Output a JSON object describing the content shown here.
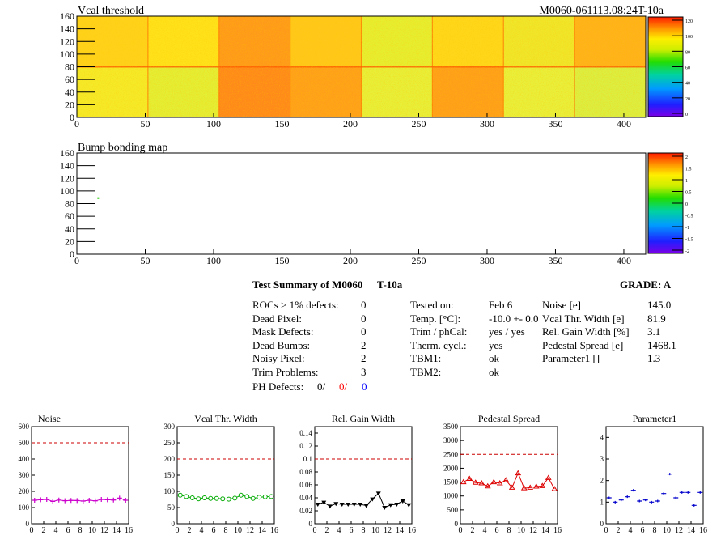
{
  "header": {
    "top_title": "Vcal threshold",
    "run_id": "M0060-061113.08:24T-10a",
    "bump_title": "Bump bonding map"
  },
  "maps": {
    "x_ticks": [
      "0",
      "50",
      "100",
      "150",
      "200",
      "250",
      "300",
      "350",
      "400"
    ],
    "y_ticks": [
      "0",
      "20",
      "40",
      "60",
      "80",
      "100",
      "120",
      "140",
      "160"
    ],
    "vcal_scale": [
      "120",
      "100",
      "80",
      "60",
      "40",
      "20",
      "0"
    ],
    "bump_scale": [
      "2",
      "1.5",
      "1",
      "0.5",
      "0",
      "-0.5",
      "-1",
      "-1.5",
      "-2"
    ],
    "bump_point": {
      "x": 15,
      "y": 90
    }
  },
  "summary": {
    "title": "Test Summary of M0060",
    "temp_code": "T-10a",
    "grade": "GRADE:  A",
    "rows_left": [
      {
        "label": "ROCs > 1% defects:",
        "value": "0"
      },
      {
        "label": "Dead Pixel:",
        "value": "0"
      },
      {
        "label": "Mask Defects:",
        "value": "0"
      },
      {
        "label": "Dead Bumps:",
        "value": "2"
      },
      {
        "label": "Noisy Pixel:",
        "value": "2"
      },
      {
        "label": "Trim Problems:",
        "value": "3"
      }
    ],
    "ph_label": "PH Defects:",
    "ph_values": [
      "0/",
      "0/",
      "0"
    ],
    "ph_colors": [
      "#000000",
      "#ff0000",
      "#0000ff"
    ],
    "rows_mid": [
      {
        "label": "Tested on:",
        "value": "Feb 6"
      },
      {
        "label": "Temp. [°C]:",
        "value": "-10.0 +- 0.0"
      },
      {
        "label": "Trim / phCal:",
        "value": "yes / yes"
      },
      {
        "label": "Therm. cycl.:",
        "value": "yes"
      },
      {
        "label": "TBM1:",
        "value": "ok"
      },
      {
        "label": "TBM2:",
        "value": "ok"
      }
    ],
    "rows_right": [
      {
        "label": "Noise [e]",
        "value": "145.0"
      },
      {
        "label": "Vcal Thr. Width [e]",
        "value": "81.9"
      },
      {
        "label": "Rel. Gain Width [%]",
        "value": "3.1"
      },
      {
        "label": "Pedestal Spread [e]",
        "value": "1468.1"
      },
      {
        "label": "Parameter1 []",
        "value": "1.3"
      }
    ]
  },
  "chart_data": [
    {
      "type": "line",
      "title": "Noise",
      "color": "#cc00cc",
      "marker": "plus",
      "ylim": [
        0,
        600
      ],
      "yticks": [
        "0",
        "100",
        "200",
        "300",
        "400",
        "500",
        "600"
      ],
      "threshold": 500,
      "x": [
        0,
        1,
        2,
        3,
        4,
        5,
        6,
        7,
        8,
        9,
        10,
        11,
        12,
        13,
        14,
        15
      ],
      "values": [
        145,
        148,
        150,
        138,
        146,
        142,
        144,
        143,
        140,
        145,
        141,
        150,
        148,
        146,
        158,
        145
      ]
    },
    {
      "type": "line",
      "title": "Vcal Thr. Width",
      "color": "#00aa00",
      "marker": "circle",
      "ylim": [
        0,
        300
      ],
      "yticks": [
        "0",
        "50",
        "100",
        "150",
        "200",
        "250",
        "300"
      ],
      "threshold": 200,
      "x": [
        0,
        1,
        2,
        3,
        4,
        5,
        6,
        7,
        8,
        9,
        10,
        11,
        12,
        13,
        14,
        15
      ],
      "values": [
        88,
        84,
        80,
        77,
        80,
        78,
        78,
        77,
        76,
        79,
        88,
        84,
        78,
        82,
        83,
        84
      ]
    },
    {
      "type": "line",
      "title": "Rel. Gain Width",
      "color": "#000000",
      "marker": "triangle-down",
      "ylim": [
        0,
        0.15
      ],
      "yticks": [
        "0",
        "0.02",
        "0.04",
        "0.06",
        "0.08",
        "0.1",
        "0.12",
        "0.14"
      ],
      "threshold": 0.1,
      "x": [
        0,
        1,
        2,
        3,
        4,
        5,
        6,
        7,
        8,
        9,
        10,
        11,
        12,
        13,
        14,
        15
      ],
      "values": [
        0.03,
        0.033,
        0.027,
        0.031,
        0.03,
        0.03,
        0.03,
        0.03,
        0.028,
        0.038,
        0.047,
        0.025,
        0.029,
        0.03,
        0.035,
        0.029
      ]
    },
    {
      "type": "line",
      "title": "Pedestal Spread",
      "color": "#dd0000",
      "marker": "triangle-up",
      "ylim": [
        0,
        3500
      ],
      "yticks": [
        "0",
        "500",
        "1000",
        "1500",
        "2000",
        "2500",
        "3000",
        "3500"
      ],
      "threshold": 2500,
      "x": [
        0,
        1,
        2,
        3,
        4,
        5,
        6,
        7,
        8,
        9,
        10,
        11,
        12,
        13,
        14,
        15
      ],
      "values": [
        1500,
        1620,
        1480,
        1460,
        1350,
        1500,
        1460,
        1570,
        1300,
        1820,
        1280,
        1300,
        1340,
        1360,
        1650,
        1250
      ]
    },
    {
      "type": "scatter",
      "title": "Parameter1",
      "color": "#0000cc",
      "marker": "hbar",
      "ylim": [
        0,
        4.5
      ],
      "yticks": [
        "0",
        "1",
        "2",
        "3",
        "4"
      ],
      "threshold": null,
      "x": [
        0,
        1,
        2,
        3,
        4,
        5,
        6,
        7,
        8,
        9,
        10,
        11,
        12,
        13,
        14,
        15
      ],
      "values": [
        1.2,
        1.0,
        1.1,
        1.25,
        1.55,
        1.05,
        1.1,
        1.0,
        1.05,
        1.4,
        2.3,
        1.2,
        1.45,
        1.45,
        0.85,
        1.45
      ]
    }
  ]
}
